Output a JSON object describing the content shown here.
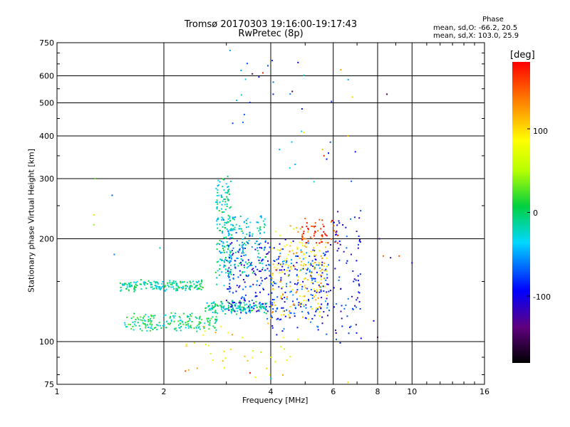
{
  "title_line1": "Tromsø 20170303 19:16:00-19:17:43",
  "title_line2": "RwPretec (8p)",
  "phase_header": "Phase",
  "phase_stat_o": "mean, sd,O: -66.2, 20.5",
  "phase_stat_x": "mean, sd,X: 103.0, 25.9",
  "colorbar": {
    "title": "[deg]",
    "tick_labels": [
      "100",
      "0",
      "-100"
    ],
    "tick_values": [
      100,
      0,
      -100
    ],
    "range": [
      -180,
      180
    ]
  },
  "chart_data": {
    "type": "scatter",
    "xlabel": "Frequency [MHz]",
    "ylabel": "Stationary phase Virtual Height [km]",
    "x_scale": "log",
    "y_scale": "log",
    "xlim": [
      1,
      16
    ],
    "ylim": [
      75,
      750
    ],
    "x_ticks": [
      1,
      2,
      4,
      6,
      8,
      10,
      16
    ],
    "x_tick_labels": [
      "1",
      "2",
      "4",
      "6",
      "8",
      "10",
      "16"
    ],
    "y_ticks": [
      75,
      100,
      200,
      300,
      400,
      500,
      600,
      750
    ],
    "y_tick_labels": [
      "75",
      "100",
      "200",
      "300",
      "400",
      "500",
      "600",
      "750"
    ],
    "grid": true,
    "color_variable": "phase [deg]",
    "clusters": [
      {
        "name": "o-trace lower",
        "x0": 1.55,
        "x1": 2.85,
        "h0": 108,
        "h1": 120,
        "phase": -5,
        "count": 180,
        "jitter": 0.03
      },
      {
        "name": "o-trace mid",
        "x0": 1.5,
        "x1": 2.6,
        "h0": 142,
        "h1": 150,
        "phase": -10,
        "count": 180,
        "jitter": 0.03
      },
      {
        "name": "o-trace upper",
        "x0": 2.6,
        "x1": 3.9,
        "h0": 122,
        "h1": 130,
        "phase": -15,
        "count": 140,
        "jitter": 0.035
      },
      {
        "name": "cusp column",
        "x0": 2.8,
        "x1": 3.1,
        "h0": 150,
        "h1": 300,
        "phase": -20,
        "count": 140,
        "jitter": 0.08
      },
      {
        "name": "F region cyan",
        "x0": 2.9,
        "x1": 3.9,
        "h0": 160,
        "h1": 230,
        "phase": -25,
        "count": 160,
        "jitter": 0.1
      },
      {
        "name": "F region blue",
        "x0": 3.0,
        "x1": 4.0,
        "h0": 120,
        "h1": 200,
        "phase": -90,
        "count": 170,
        "jitter": 0.12
      },
      {
        "name": "x-trace mix",
        "x0": 4.0,
        "x1": 5.9,
        "h0": 110,
        "h1": 190,
        "phase": -80,
        "count": 220,
        "jitter": 0.15
      },
      {
        "name": "x-trace warm",
        "x0": 4.0,
        "x1": 5.8,
        "h0": 120,
        "h1": 210,
        "phase": 100,
        "count": 170,
        "jitter": 0.15
      },
      {
        "name": "x-trace red",
        "x0": 4.9,
        "x1": 6.2,
        "h0": 195,
        "h1": 225,
        "phase": 165,
        "count": 60,
        "jitter": 0.06
      },
      {
        "name": "far x-trace",
        "x0": 6.0,
        "x1": 7.2,
        "h0": 105,
        "h1": 230,
        "phase": -95,
        "count": 80,
        "jitter": 0.15
      },
      {
        "name": "sparse lower",
        "x0": 2.3,
        "x1": 4.8,
        "h0": 82,
        "h1": 105,
        "phase": 90,
        "count": 40,
        "jitter": 0.2
      },
      {
        "name": "sparse high",
        "x0": 3.0,
        "x1": 7.0,
        "h0": 300,
        "h1": 640,
        "phase": -60,
        "count": 30,
        "jitter": 0.4
      }
    ],
    "points": [
      {
        "x": 1.28,
        "y": 300,
        "phase": 30
      },
      {
        "x": 1.27,
        "y": 235,
        "phase": 100
      },
      {
        "x": 1.27,
        "y": 220,
        "phase": 40
      },
      {
        "x": 1.43,
        "y": 268,
        "phase": -70
      },
      {
        "x": 1.45,
        "y": 180,
        "phase": -60
      },
      {
        "x": 1.95,
        "y": 188,
        "phase": -20
      },
      {
        "x": 3.3,
        "y": 622,
        "phase": -50
      },
      {
        "x": 3.55,
        "y": 608,
        "phase": -150
      },
      {
        "x": 3.8,
        "y": 612,
        "phase": 170
      },
      {
        "x": 4.6,
        "y": 540,
        "phase": -150
      },
      {
        "x": 4.9,
        "y": 480,
        "phase": -90
      },
      {
        "x": 4.95,
        "y": 410,
        "phase": 90
      },
      {
        "x": 5.65,
        "y": 350,
        "phase": 170
      },
      {
        "x": 5.6,
        "y": 365,
        "phase": 110
      },
      {
        "x": 6.3,
        "y": 625,
        "phase": 120
      },
      {
        "x": 6.8,
        "y": 520,
        "phase": 100
      },
      {
        "x": 6.6,
        "y": 400,
        "phase": 110
      },
      {
        "x": 8.5,
        "y": 530,
        "phase": -150
      },
      {
        "x": 8.1,
        "y": 200,
        "phase": -130
      },
      {
        "x": 8.3,
        "y": 178,
        "phase": 140
      },
      {
        "x": 8.7,
        "y": 176,
        "phase": -120
      },
      {
        "x": 9.2,
        "y": 178,
        "phase": 150
      },
      {
        "x": 10.0,
        "y": 170,
        "phase": -110
      },
      {
        "x": 7.8,
        "y": 115,
        "phase": -100
      },
      {
        "x": 8.0,
        "y": 103,
        "phase": -150
      },
      {
        "x": 6.6,
        "y": 76,
        "phase": 100
      },
      {
        "x": 2.3,
        "y": 82,
        "phase": 150
      },
      {
        "x": 3.5,
        "y": 81,
        "phase": 170
      },
      {
        "x": 4.0,
        "y": 78,
        "phase": -30
      }
    ]
  }
}
